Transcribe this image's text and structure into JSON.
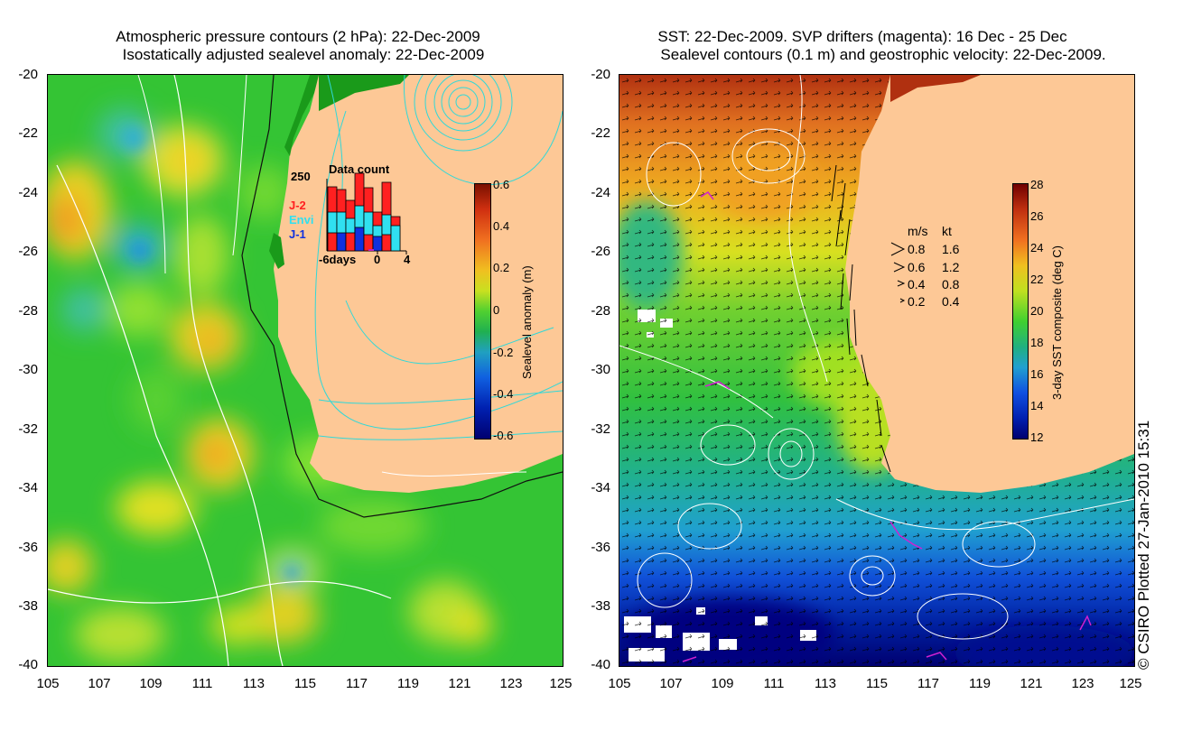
{
  "left_panel": {
    "title_line1": "Atmospheric pressure contours (2 hPa): 22-Dec-2009",
    "title_line2": "Isostatically adjusted sealevel anomaly: 22-Dec-2009",
    "colorbar": {
      "title": "Sealevel anomaly (m)",
      "ticks": [
        "0.6",
        "0.4",
        "0.2",
        "0",
        "-0.2",
        "-0.4",
        "-0.6"
      ]
    },
    "inset": {
      "title": "Data count",
      "max_label": "250",
      "legend": [
        {
          "label": "J-2",
          "color": "#ff2020"
        },
        {
          "label": "Envi",
          "color": "#30e0f0"
        },
        {
          "label": "J-1",
          "color": "#1030e0"
        }
      ],
      "x_labels": [
        "-6days",
        "0",
        "4"
      ]
    }
  },
  "right_panel": {
    "title_line1": "SST: 22-Dec-2009. SVP drifters (magenta): 16 Dec - 25 Dec",
    "title_line2": "Sealevel contours (0.1 m) and geostrophic velocity: 22-Dec-2009.",
    "colorbar": {
      "title": "3-day SST composite (deg C)",
      "ticks": [
        "28",
        "26",
        "24",
        "22",
        "20",
        "18",
        "16",
        "14",
        "12"
      ]
    },
    "velocity_legend": {
      "header_ms": "m/s",
      "header_kt": "kt",
      "rows": [
        {
          "ms": "0.8",
          "kt": "1.6"
        },
        {
          "ms": "0.6",
          "kt": "1.2"
        },
        {
          "ms": "0.4",
          "kt": "0.8"
        },
        {
          "ms": "0.2",
          "kt": "0.4"
        }
      ]
    }
  },
  "axes": {
    "y_ticks": [
      "-20",
      "-22",
      "-24",
      "-26",
      "-28",
      "-30",
      "-32",
      "-34",
      "-36",
      "-38",
      "-40"
    ],
    "x_ticks": [
      "105",
      "107",
      "109",
      "111",
      "113",
      "115",
      "117",
      "119",
      "121",
      "123",
      "125"
    ]
  },
  "credit": "© CSIRO Plotted 27-Jan-2010 15:31",
  "colors": {
    "land": "#fdc896",
    "ocean_green": "#30c830",
    "contour_cyan": "#30d8d8"
  }
}
